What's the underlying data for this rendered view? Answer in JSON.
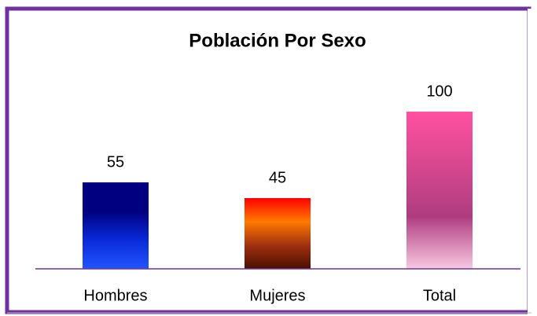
{
  "chart_data": {
    "type": "bar",
    "title": "Población Por Sexo",
    "categories": [
      "Hombres",
      "Mujeres",
      "Total"
    ],
    "values": [
      55,
      45,
      100
    ],
    "colors": [
      [
        "#000080",
        "#000080",
        "#0a2ad8",
        "#2255ff"
      ],
      [
        "#ff0000",
        "#ff7a00",
        "#a03010",
        "#4a1000"
      ],
      [
        "#ff50a0",
        "#d84890",
        "#b03c80",
        "#f8c8e0"
      ]
    ]
  }
}
